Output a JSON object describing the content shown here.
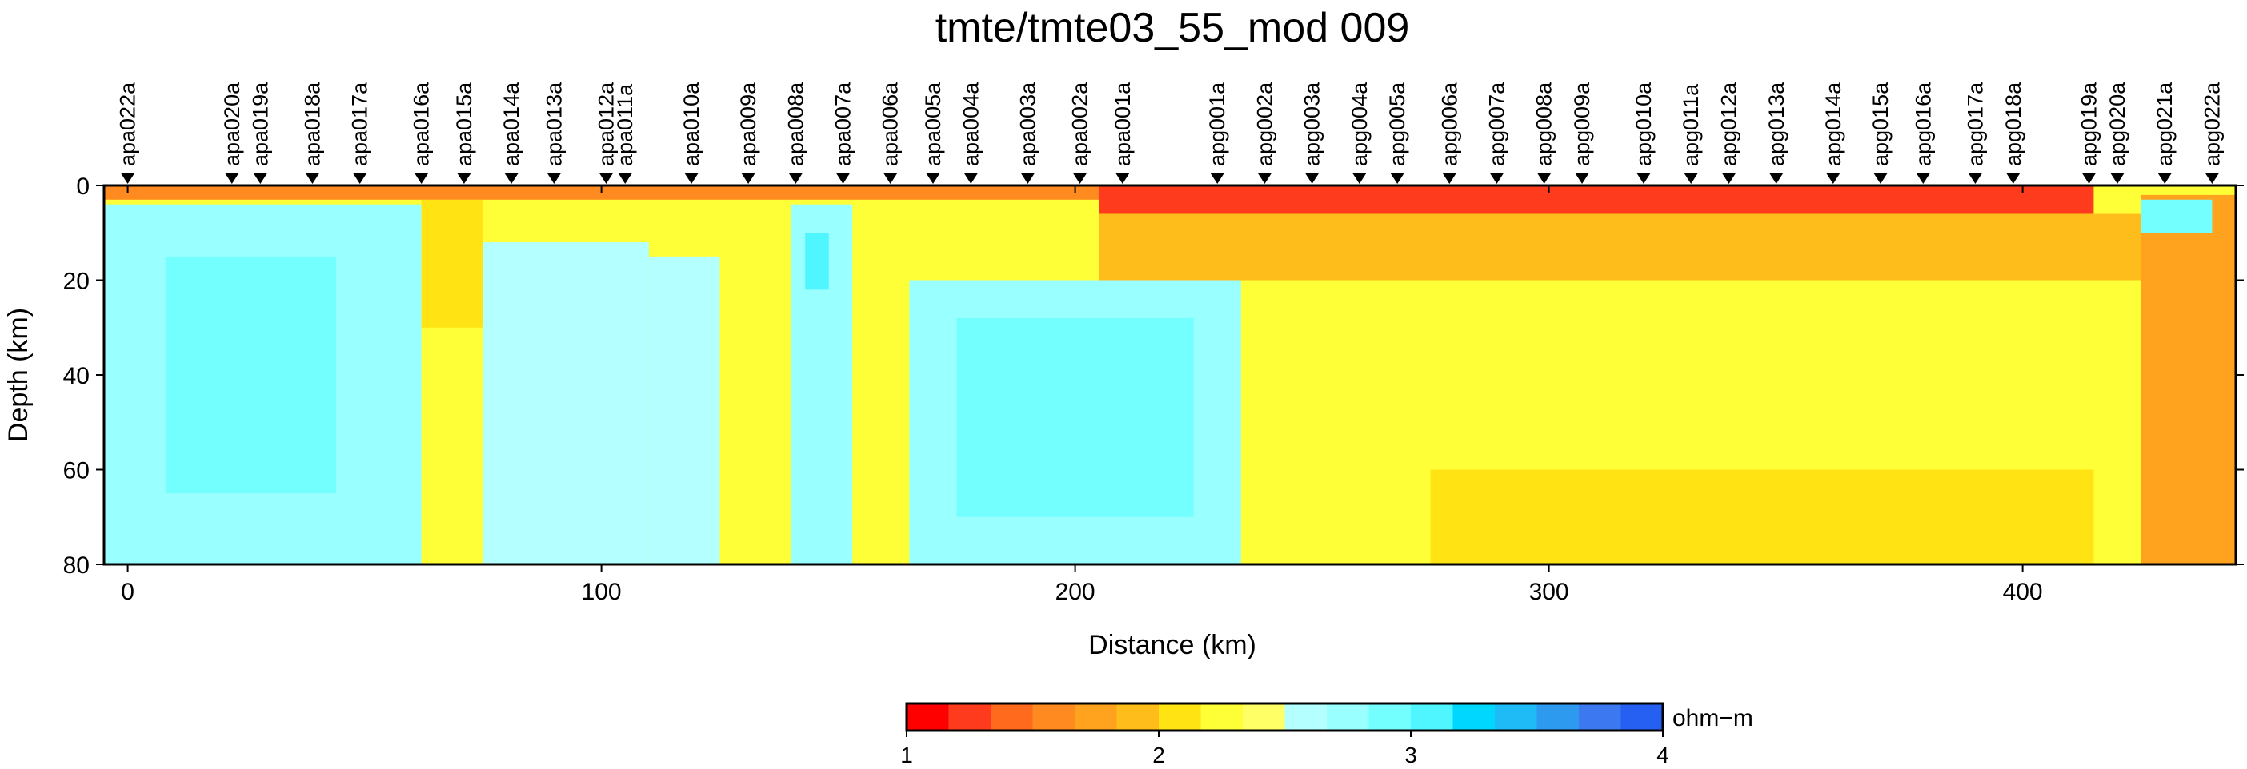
{
  "chart_data": {
    "type": "heatmap",
    "title": "tmte/tmte03_55_mod 009",
    "xlabel": "Distance (km)",
    "ylabel": "Depth (km)",
    "xlim": [
      -5,
      445
    ],
    "ylim": [
      80,
      0
    ],
    "x_ticks": [
      0,
      100,
      200,
      300,
      400
    ],
    "y_ticks": [
      0,
      20,
      40,
      60,
      80
    ],
    "stations": [
      {
        "name": "apa022a",
        "x": 0
      },
      {
        "name": "apa020a",
        "x": 22
      },
      {
        "name": "apa019a",
        "x": 28
      },
      {
        "name": "apa018a",
        "x": 39
      },
      {
        "name": "apa017a",
        "x": 49
      },
      {
        "name": "apa016a",
        "x": 62
      },
      {
        "name": "apa015a",
        "x": 71
      },
      {
        "name": "apa014a",
        "x": 81
      },
      {
        "name": "apa013a",
        "x": 90
      },
      {
        "name": "apa012a",
        "x": 101
      },
      {
        "name": "apa011a",
        "x": 105
      },
      {
        "name": "apa010a",
        "x": 119
      },
      {
        "name": "apa009a",
        "x": 131
      },
      {
        "name": "apa008a",
        "x": 141
      },
      {
        "name": "apa007a",
        "x": 151
      },
      {
        "name": "apa006a",
        "x": 161
      },
      {
        "name": "apa005a",
        "x": 170
      },
      {
        "name": "apa004a",
        "x": 178
      },
      {
        "name": "apa003a",
        "x": 190
      },
      {
        "name": "apa002a",
        "x": 201
      },
      {
        "name": "apa001a",
        "x": 210
      },
      {
        "name": "apg001a",
        "x": 230
      },
      {
        "name": "apg002a",
        "x": 240
      },
      {
        "name": "apg003a",
        "x": 250
      },
      {
        "name": "apg004a",
        "x": 260
      },
      {
        "name": "apg005a",
        "x": 268
      },
      {
        "name": "apg006a",
        "x": 279
      },
      {
        "name": "apg007a",
        "x": 289
      },
      {
        "name": "apg008a",
        "x": 299
      },
      {
        "name": "apg009a",
        "x": 307
      },
      {
        "name": "apg010a",
        "x": 320
      },
      {
        "name": "apg011a",
        "x": 330
      },
      {
        "name": "apg012a",
        "x": 338
      },
      {
        "name": "apg013a",
        "x": 348
      },
      {
        "name": "apg014a",
        "x": 360
      },
      {
        "name": "apg015a",
        "x": 370
      },
      {
        "name": "apg016a",
        "x": 379
      },
      {
        "name": "apg017a",
        "x": 390
      },
      {
        "name": "apg018a",
        "x": 398
      },
      {
        "name": "apg019a",
        "x": 414
      },
      {
        "name": "apg020a",
        "x": 420
      },
      {
        "name": "apg021a",
        "x": 430
      },
      {
        "name": "apg022a",
        "x": 440
      }
    ],
    "resistivity_regions": [
      {
        "x": [
          -5,
          445
        ],
        "z": [
          0,
          80
        ],
        "log10_rho": 2.2
      },
      {
        "x": [
          -5,
          62
        ],
        "z": [
          4,
          80
        ],
        "log10_rho": 2.7
      },
      {
        "x": [
          8,
          44
        ],
        "z": [
          15,
          65
        ],
        "log10_rho": 2.85
      },
      {
        "x": [
          62,
          75
        ],
        "z": [
          3,
          30
        ],
        "log10_rho": 2.15
      },
      {
        "x": [
          75,
          110
        ],
        "z": [
          12,
          80
        ],
        "log10_rho": 2.65
      },
      {
        "x": [
          110,
          125
        ],
        "z": [
          15,
          80
        ],
        "log10_rho": 2.65
      },
      {
        "x": [
          125,
          140
        ],
        "z": [
          5,
          80
        ],
        "log10_rho": 2.25
      },
      {
        "x": [
          140,
          153
        ],
        "z": [
          4,
          80
        ],
        "log10_rho": 2.8
      },
      {
        "x": [
          143,
          148
        ],
        "z": [
          10,
          22
        ],
        "log10_rho": 3.05
      },
      {
        "x": [
          153,
          165
        ],
        "z": [
          5,
          80
        ],
        "log10_rho": 2.25
      },
      {
        "x": [
          165,
          235
        ],
        "z": [
          20,
          80
        ],
        "log10_rho": 2.7
      },
      {
        "x": [
          175,
          225
        ],
        "z": [
          28,
          70
        ],
        "log10_rho": 2.85
      },
      {
        "x": [
          195,
          205
        ],
        "z": [
          32,
          50
        ],
        "log10_rho": 2.95
      },
      {
        "x": [
          205,
          415
        ],
        "z": [
          0,
          6
        ],
        "log10_rho": 1.3
      },
      {
        "x": [
          205,
          445
        ],
        "z": [
          6,
          20
        ],
        "log10_rho": 1.9
      },
      {
        "x": [
          275,
          415
        ],
        "z": [
          60,
          80
        ],
        "log10_rho": 2.05
      },
      {
        "x": [
          425,
          445
        ],
        "z": [
          2,
          80
        ],
        "log10_rho": 1.75
      },
      {
        "x": [
          425,
          440
        ],
        "z": [
          3,
          10
        ],
        "log10_rho": 2.95
      },
      {
        "x": [
          -5,
          205
        ],
        "z": [
          0,
          3
        ],
        "log10_rho": 1.5
      }
    ],
    "colorbar": {
      "label": "ohm−m",
      "ticks": [
        1,
        2,
        3,
        4
      ],
      "range": [
        1,
        4
      ],
      "colors": [
        "#ff0000",
        "#ff3b1e",
        "#ff6a1c",
        "#ff8a1f",
        "#ffa31f",
        "#ffbd1c",
        "#ffe313",
        "#ffff38",
        "#ffff66",
        "#b4ffff",
        "#99ffff",
        "#74ffff",
        "#50f6ff",
        "#00d7ff",
        "#1ebbf6",
        "#2d9af0",
        "#3c78f0",
        "#2560f2"
      ]
    }
  }
}
